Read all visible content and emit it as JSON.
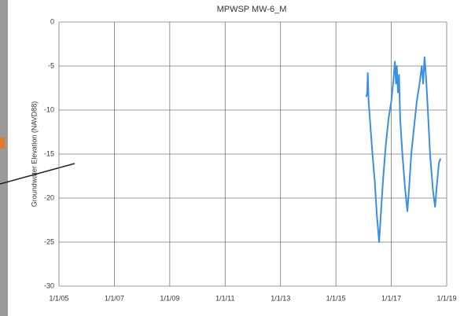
{
  "chart_data": {
    "type": "line",
    "title": "MPWSP MW-6_M",
    "y_label": "Groundwater Elevation (NAVD88)",
    "x": [
      2016.1,
      2016.13,
      2016.15,
      2016.18,
      2016.25,
      2016.32,
      2016.4,
      2016.48,
      2016.56,
      2016.62,
      2016.7,
      2016.8,
      2016.9,
      2017.0,
      2017.08,
      2017.13,
      2017.17,
      2017.2,
      2017.24,
      2017.28,
      2017.32,
      2017.4,
      2017.5,
      2017.58,
      2017.64,
      2017.72,
      2017.82,
      2017.92,
      2018.02,
      2018.1,
      2018.15,
      2018.2,
      2018.25,
      2018.32,
      2018.4,
      2018.5,
      2018.58,
      2018.66,
      2018.72,
      2018.78
    ],
    "series": [
      {
        "color": "#3a8fe3",
        "values": [
          -8.5,
          -8,
          -5.8,
          -9,
          -12,
          -15,
          -18,
          -22,
          -25,
          -22,
          -18,
          -14,
          -11,
          -9,
          -6.5,
          -4.5,
          -7,
          -5,
          -8,
          -6,
          -11,
          -15,
          -19,
          -21.5,
          -19,
          -15,
          -12,
          -9,
          -7,
          -5,
          -7,
          -4,
          -6,
          -10,
          -15,
          -19,
          -21,
          -18,
          -16,
          -15.5
        ]
      }
    ],
    "xlim": [
      2005,
      2019
    ],
    "xticks": [
      {
        "value": 2005,
        "label": "1/1/05"
      },
      {
        "value": 2007,
        "label": "1/1/07"
      },
      {
        "value": 2009,
        "label": "1/1/09"
      },
      {
        "value": 2011,
        "label": "1/1/11"
      },
      {
        "value": 2013,
        "label": "1/1/13"
      },
      {
        "value": 2015,
        "label": "1/1/15"
      },
      {
        "value": 2017,
        "label": "1/1/17"
      },
      {
        "value": 2019,
        "label": "1/1/19"
      }
    ],
    "ylim": [
      -30,
      0
    ],
    "yticks": [
      0,
      -5,
      -10,
      -15,
      -20,
      -25,
      -30
    ],
    "grid": true
  }
}
